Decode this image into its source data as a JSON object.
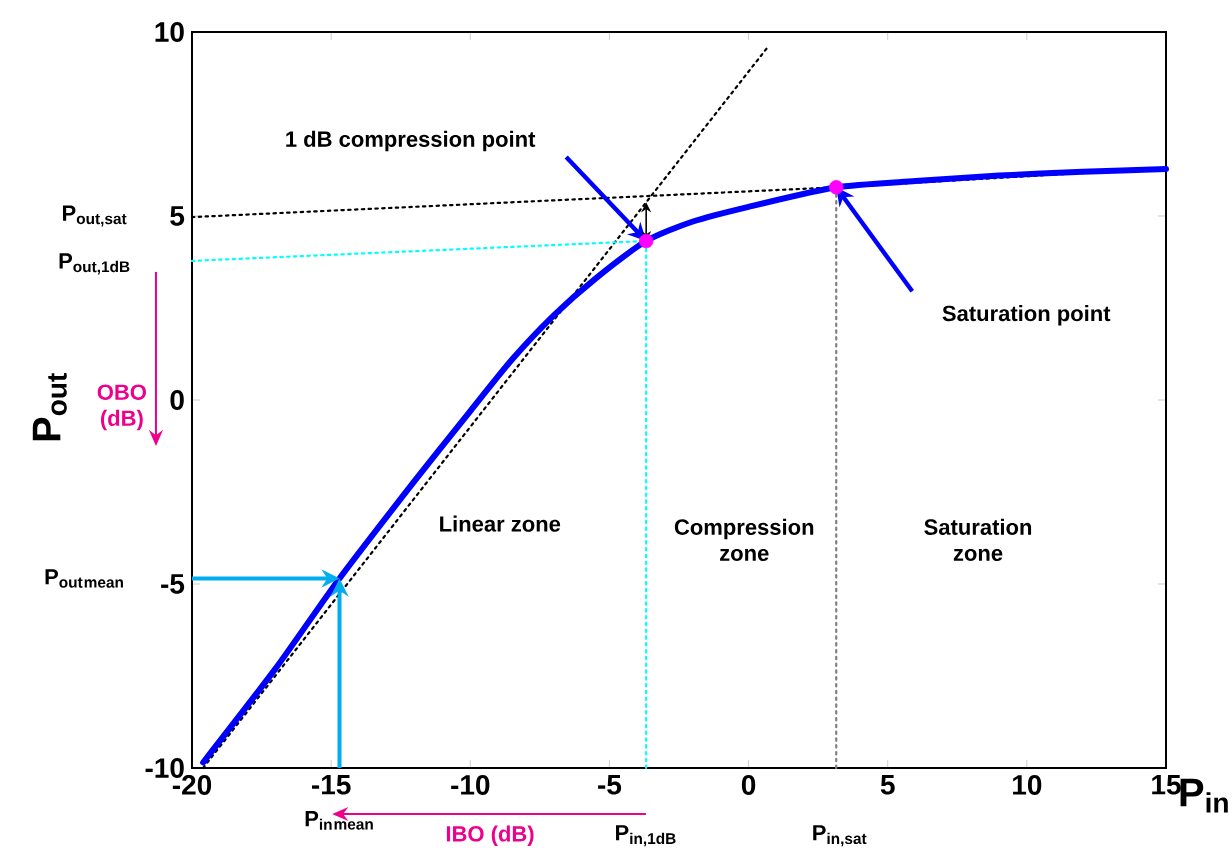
{
  "chart_data": {
    "type": "line",
    "marker": "none",
    "xlabel": "P$_{in}$",
    "ylabel": "P$_{out}$",
    "xlim": [
      -20,
      15
    ],
    "ylim": [
      -10,
      10
    ],
    "xticks": [
      -20,
      -15,
      -10,
      -5,
      0,
      5,
      10,
      15
    ],
    "yticks": [
      -10,
      -5,
      0,
      5,
      10
    ],
    "series": [
      {
        "line_style": "dotted",
        "color": "#000000",
        "x": [
          -19.6,
          0.7
        ],
        "values": [
          -10,
          9.6
        ]
      },
      {
        "line_style": "dotted",
        "color": "#000000",
        "x": [
          -20,
          3.15,
          15
        ],
        "values": [
          4.97,
          5.78,
          6.3
        ]
      },
      {
        "line_style": "dotted",
        "color": "#00ffff",
        "x": [
          -20,
          -3.68
        ],
        "values": [
          3.78,
          4.32
        ]
      },
      {
        "line_style": "dotted",
        "color": "#00ffff",
        "x": [
          -3.68,
          -3.68
        ],
        "values": [
          -10,
          4.32
        ]
      },
      {
        "line_style": "dotted",
        "color": "#808080",
        "x": [
          3.15,
          3.15
        ],
        "values": [
          -10,
          5.78
        ]
      },
      {
        "line_style": "solid",
        "color": "#0000ff",
        "x": [
          -19.6,
          -17,
          -14.7,
          -12,
          -10,
          -8.5,
          -7,
          -5.5,
          -3.68,
          -2,
          0,
          3.15,
          6,
          9,
          12,
          15
        ],
        "values": [
          -9.85,
          -7.3,
          -4.85,
          -2.2,
          -0.3,
          1.1,
          2.3,
          3.3,
          4.32,
          4.85,
          5.25,
          5.78,
          5.95,
          6.1,
          6.2,
          6.28
        ]
      },
      {
        "type": "scatter",
        "marker": "circle",
        "color": "#ff00ff",
        "x": [
          -3.68,
          3.15
        ],
        "values": [
          4.32,
          5.78
        ]
      }
    ],
    "annotations": [
      "1 dB compression point",
      "Saturation point",
      "Linear zone",
      "Compression zone",
      "Saturation zone",
      "P$_{out,sat}$",
      "P$_{out,1dB}$",
      "P$_{out}$$_{mean}$",
      "P$_{in}$$_{mean}$",
      "P$_{in,1dB}$",
      "P$_{in,sat}$",
      "OBO (dB)",
      "IBO (dB)"
    ]
  }
}
